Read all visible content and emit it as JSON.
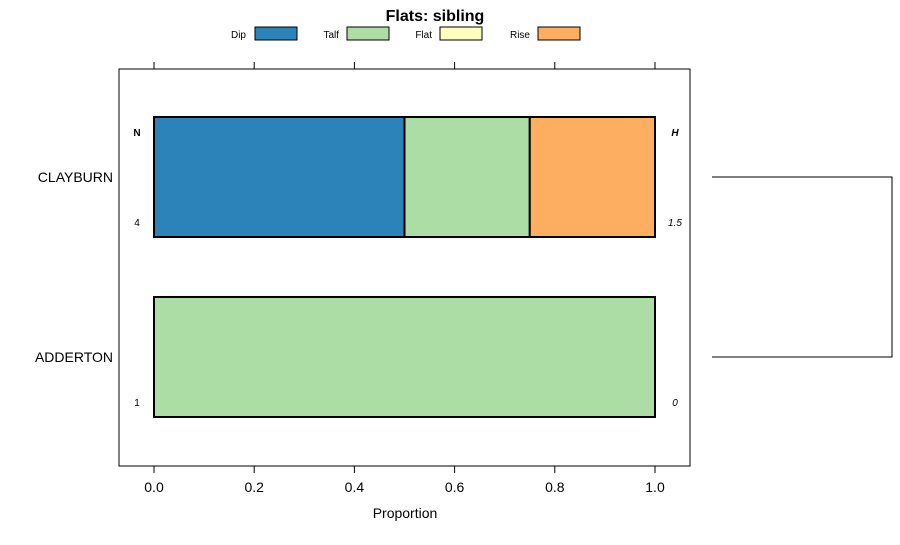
{
  "chart_data": {
    "type": "bar",
    "orientation": "horizontal",
    "stacked": true,
    "title": "Flats: sibling",
    "xlabel": "Proportion",
    "ylabel": "",
    "xlim": [
      -0.07,
      1.07
    ],
    "x_ticks": [
      0.0,
      0.2,
      0.4,
      0.6,
      0.8,
      1.0
    ],
    "x_tick_labels": [
      "0.0",
      "0.2",
      "0.4",
      "0.6",
      "0.8",
      "1.0"
    ],
    "legend_position": "top",
    "categories": [
      "CLAYBURN",
      "ADDERTON"
    ],
    "series": [
      {
        "name": "Dip",
        "color": "#2b83ba",
        "values": [
          0.5,
          0.0
        ]
      },
      {
        "name": "Talf",
        "color": "#abdda4",
        "values": [
          0.25,
          1.0
        ]
      },
      {
        "name": "Flat",
        "color": "#ffffbf",
        "values": [
          0.0,
          0.0
        ]
      },
      {
        "name": "Rise",
        "color": "#fdae61",
        "values": [
          0.25,
          0.0
        ]
      }
    ],
    "left_annotation_header": "N",
    "right_annotation_header": "H",
    "left_annotations": [
      "4",
      "1"
    ],
    "right_annotations": [
      "1.5",
      "0"
    ],
    "dendrogram": true
  }
}
